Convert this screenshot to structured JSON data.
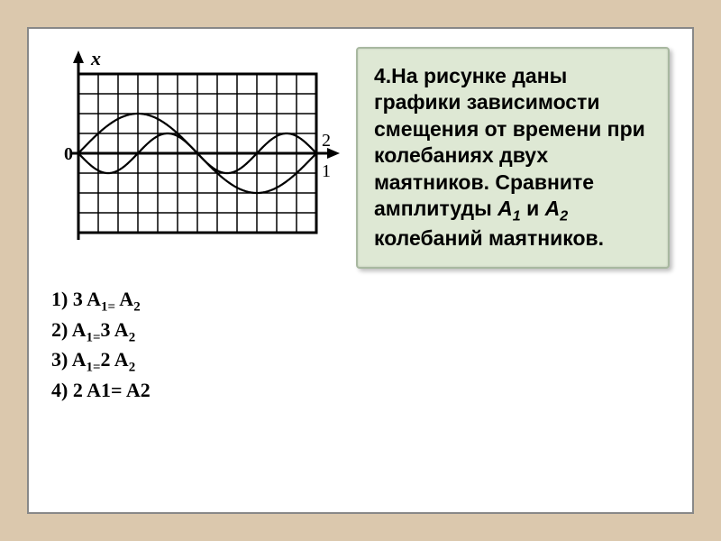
{
  "chart": {
    "type": "line",
    "axis_label_x": "x",
    "origin_label": "0",
    "curve1_label": "1",
    "curve2_label": "2",
    "grid_cols": 12,
    "grid_rows": 8,
    "cell_size": 22,
    "grid_color": "#000000",
    "bg_color": "#ffffff",
    "line_width": 2.2,
    "curve1": {
      "amplitude_cells": 1,
      "period_cells": 6,
      "phase_cells": 0,
      "sign": -1,
      "color": "#000000"
    },
    "curve2": {
      "amplitude_cells": 2,
      "period_cells": 12,
      "phase_cells": 0,
      "sign": 1,
      "color": "#000000"
    }
  },
  "answers": {
    "opt1_num": "1)  ",
    "opt1_html": "3 A<sub>1=</sub> A<sub>2</sub>",
    "opt2_num": "2)  ",
    "opt2_html": " A<sub>1=</sub>3 A<sub>2</sub>",
    "opt3_num": "3)   ",
    "opt3_html": " A<sub>1=</sub>2 A<sub>2</sub>",
    "opt4_num": "4)    ",
    "opt4_html": "2 A1= A2"
  },
  "question": {
    "html": "4.На рисунке даны графики зависимости смещения от времени при колебаниях двух маятников. Сравните амплитуды <em>A<sub>1</sub></em> и <em>A<sub>2</sub></em> колебаний маятников."
  },
  "colors": {
    "slide_bg": "#dbc8ad",
    "page_bg": "#ffffff",
    "panel_bg": "#dee8d4",
    "panel_border": "#a8b8a0"
  }
}
